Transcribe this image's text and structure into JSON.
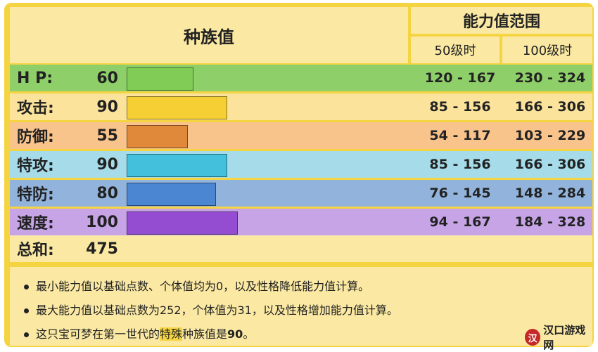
{
  "header": {
    "base_stats_title": "种族值",
    "stat_range_title": "能力值范围",
    "level50_label": "50级时",
    "level100_label": "100级时"
  },
  "stats": [
    {
      "name": "H P:",
      "value": "60",
      "fraction": 0.235,
      "range50": "120 - 167",
      "range100": "230 - 324",
      "row_color": "#8ecf6a",
      "bar_color": "#80cc57"
    },
    {
      "name": "攻击:",
      "value": "90",
      "fraction": 0.353,
      "range50": "85 - 156",
      "range100": "166 - 306",
      "row_color": "#fbe39c",
      "bar_color": "#f5cf34"
    },
    {
      "name": "防御:",
      "value": "55",
      "fraction": 0.216,
      "range50": "54 - 117",
      "range100": "103 - 229",
      "row_color": "#f9c48c",
      "bar_color": "#e1893a"
    },
    {
      "name": "特攻:",
      "value": "90",
      "fraction": 0.353,
      "range50": "85 - 156",
      "range100": "166 - 306",
      "row_color": "#a6dcea",
      "bar_color": "#43c1dc"
    },
    {
      "name": "特防:",
      "value": "80",
      "fraction": 0.314,
      "range50": "76 - 145",
      "range100": "148 - 284",
      "row_color": "#92b4dc",
      "bar_color": "#4b86d2"
    },
    {
      "name": "速度:",
      "value": "100",
      "fraction": 0.392,
      "range50": "94 - 167",
      "range100": "184 - 328",
      "row_color": "#c6a4e6",
      "bar_color": "#944dd1"
    }
  ],
  "total": {
    "name": "总和:",
    "value": "475"
  },
  "notes": {
    "line1": "最小能力值以基础点数、个体值均为0，以及性格降低能力值计算。",
    "line2": "最大能力值以基础点数为252，个体值为31，以及性格增加能力值计算。",
    "line3_before": "这只宝可梦在第一世代的",
    "line3_highlight": "特殊",
    "line3_middle": "种族值是",
    "line3_bold": "90",
    "line3_after": "。"
  },
  "watermark": {
    "logo": "汉",
    "text": "汉口游戏网"
  }
}
